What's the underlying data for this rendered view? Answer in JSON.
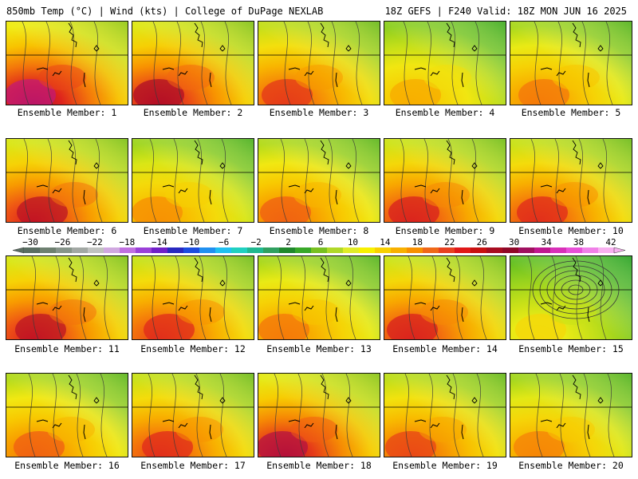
{
  "header": {
    "left": "850mb Temp (°C) | Wind (kts) | College of DuPage NEXLAB",
    "right": "18Z GEFS | F240 Valid: 18Z MON JUN 16 2025"
  },
  "members": [
    {
      "label": "Ensemble Member: 1",
      "warmth": 0.88
    },
    {
      "label": "Ensemble Member: 2",
      "warmth": 0.82
    },
    {
      "label": "Ensemble Member: 3",
      "warmth": 0.72
    },
    {
      "label": "Ensemble Member: 4",
      "warmth": 0.52
    },
    {
      "label": "Ensemble Member: 5",
      "warmth": 0.62
    },
    {
      "label": "Ensemble Member: 6",
      "warmth": 0.8
    },
    {
      "label": "Ensemble Member: 7",
      "warmth": 0.58
    },
    {
      "label": "Ensemble Member: 8",
      "warmth": 0.66
    },
    {
      "label": "Ensemble Member: 9",
      "warmth": 0.76
    },
    {
      "label": "Ensemble Member: 10",
      "warmth": 0.74
    },
    {
      "label": "Ensemble Member: 11",
      "warmth": 0.8
    },
    {
      "label": "Ensemble Member: 12",
      "warmth": 0.74
    },
    {
      "label": "Ensemble Member: 13",
      "warmth": 0.62
    },
    {
      "label": "Ensemble Member: 14",
      "warmth": 0.76
    },
    {
      "label": "Ensemble Member: 15",
      "warmth": 0.4
    },
    {
      "label": "Ensemble Member: 16",
      "warmth": 0.66
    },
    {
      "label": "Ensemble Member: 17",
      "warmth": 0.74
    },
    {
      "label": "Ensemble Member: 18",
      "warmth": 0.84
    },
    {
      "label": "Ensemble Member: 19",
      "warmth": 0.7
    },
    {
      "label": "Ensemble Member: 20",
      "warmth": 0.6
    }
  ],
  "colorbar": {
    "labels": [
      "−30",
      "−26",
      "−22",
      "−18",
      "−14",
      "−10",
      "−6",
      "−2",
      "2",
      "6",
      "10",
      "14",
      "18",
      "22",
      "26",
      "30",
      "34",
      "38",
      "42"
    ],
    "colors": [
      "#5a6e62",
      "#6e8070",
      "#86948a",
      "#a2a8a4",
      "#c0c2c0",
      "#d0a8e0",
      "#c070e0",
      "#9a40d8",
      "#7020c8",
      "#2828c0",
      "#1c4ce0",
      "#2090f0",
      "#20c0f0",
      "#20d0c0",
      "#20b890",
      "#30a060",
      "#20882c",
      "#38a828",
      "#78c020",
      "#b0d828",
      "#e0ec28",
      "#f8f000",
      "#f8d000",
      "#f8b000",
      "#f89000",
      "#f06818",
      "#e84020",
      "#e01818",
      "#c81010",
      "#a80c20",
      "#900828",
      "#a01060",
      "#c01890",
      "#d830b8",
      "#e850d8",
      "#f080e8",
      "#f8b0f0"
    ]
  }
}
